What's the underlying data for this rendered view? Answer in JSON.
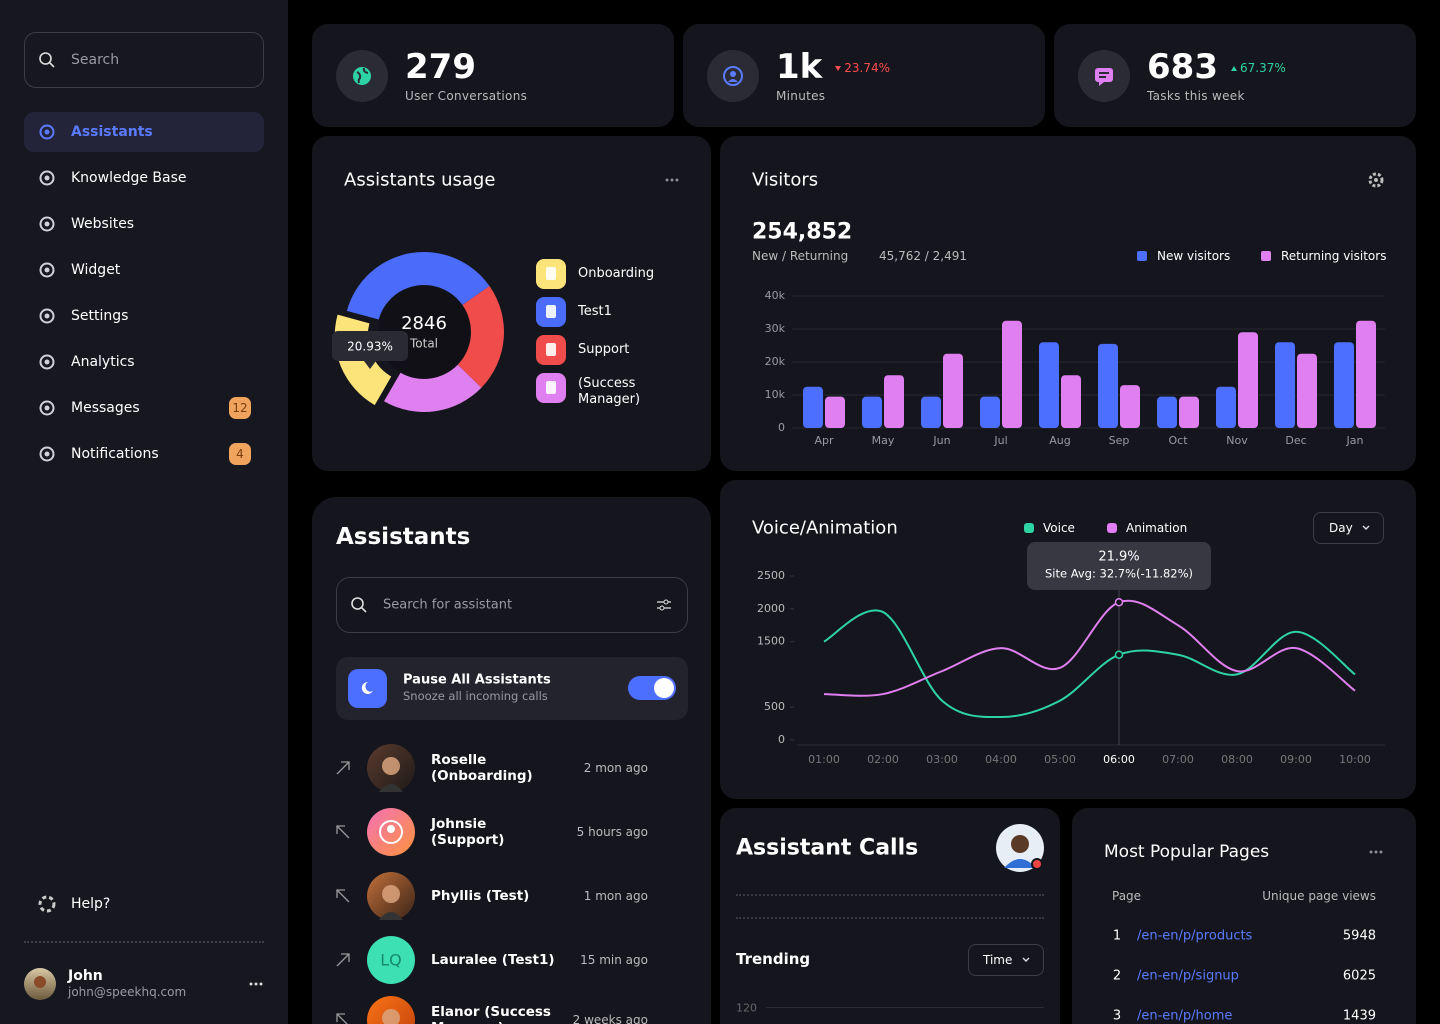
{
  "sidebar": {
    "search": "Search",
    "nav": [
      {
        "label": "Assistants"
      },
      {
        "label": "Knowledge Base"
      },
      {
        "label": "Websites"
      },
      {
        "label": "Widget"
      },
      {
        "label": "Settings"
      },
      {
        "label": "Analytics"
      },
      {
        "label": "Messages",
        "badge": 12
      },
      {
        "label": "Notifications",
        "badge": 4
      }
    ],
    "help": "Help?",
    "user": {
      "name": "John",
      "email": "john@speekhq.com"
    }
  },
  "stats": [
    {
      "value": 279,
      "label": "User Conversations"
    },
    {
      "value": "1k",
      "label": "Minutes",
      "change": "23.74%"
    },
    {
      "value": 683,
      "label": "Tasks this week",
      "change": "67.37%"
    }
  ],
  "assistants": {
    "title": "Assistants",
    "search": "Search for assistant",
    "pause": {
      "title": "Pause All Assistants",
      "subtitle": "Snooze all incoming calls"
    },
    "items": [
      {
        "name": "Roselle (Onboarding)",
        "time": "2 mon ago"
      },
      {
        "name": "Johnsie (Support)",
        "time": "5 hours ago"
      },
      {
        "name": "Phyllis (Test)",
        "time": "1 mon ago"
      },
      {
        "name": "Lauralee (Test1)",
        "time": "15 min ago",
        "initials": "LQ"
      },
      {
        "name": "Elanor (Success Manager)",
        "time": "2 weeks ago"
      }
    ]
  },
  "assistant_calls": {
    "title": "Assistant Calls",
    "trending": "Trending",
    "filter": "Time",
    "tick": 120
  },
  "popular_pages": {
    "title": "Most Popular Pages",
    "columns": [
      "Page",
      "Unique page views"
    ],
    "rows": [
      [
        1,
        "/en-en/p/products",
        5948
      ],
      [
        2,
        "/en-en/p/signup",
        6025
      ],
      [
        3,
        "/en-en/p/home",
        1439
      ]
    ]
  },
  "chart_data": [
    {
      "type": "pie",
      "title": "Assistants usage",
      "total": 2846,
      "total_label": "Total",
      "categories": [
        "Onboarding",
        "Test1",
        "Support",
        "(Success Manager)"
      ],
      "colors": [
        "#fde47a",
        "#4b6bfb",
        "#f04c4c",
        "#e07ff0"
      ],
      "values": [
        20.93,
        36,
        22,
        21.07
      ],
      "value_labels": [
        "20.93%",
        null,
        null,
        null
      ]
    },
    {
      "type": "bar",
      "title": "Visitors",
      "total": "254,852",
      "subtitle": "New / Returning",
      "detail": "45,762 / 2,491",
      "categories": [
        "Apr",
        "May",
        "Jun",
        "Jul",
        "Aug",
        "Sep",
        "Oct",
        "Nov",
        "Dec",
        "Jan"
      ],
      "series": [
        {
          "name": "New visitors",
          "color": "#4c6fff",
          "values": [
            12500,
            9500,
            9500,
            9500,
            26000,
            25500,
            9500,
            12500,
            26000,
            26000
          ]
        },
        {
          "name": "Returning visitors",
          "color": "#e07ff0",
          "values": [
            9500,
            16000,
            22500,
            32500,
            16000,
            13000,
            9500,
            29000,
            22500,
            32500
          ]
        }
      ],
      "ylim": [
        0,
        40000
      ],
      "yticks": [
        0,
        {
          "value": 10000,
          "label": "10k"
        },
        {
          "value": 20000,
          "label": "20k"
        },
        {
          "value": 30000,
          "label": "30k"
        },
        {
          "value": 40000,
          "label": "40k"
        }
      ],
      "grid": true
    },
    {
      "type": "line",
      "title": "Voice/Animation",
      "filter": "Day",
      "categories": [
        "01:00",
        "02:00",
        "03:00",
        "04:00",
        "05:00",
        "06:00",
        "07:00",
        "08:00",
        "09:00",
        "10:00"
      ],
      "series": [
        {
          "name": "Voice",
          "color": "#2ed3a5",
          "values": [
            1500,
            1950,
            600,
            350,
            600,
            1300,
            1300,
            1000,
            1650,
            1000
          ]
        },
        {
          "name": "Animation",
          "color": "#e07ff0",
          "values": [
            700,
            700,
            1050,
            1400,
            1100,
            2100,
            1750,
            1050,
            1400,
            750
          ]
        }
      ],
      "ylim": [
        0,
        2500
      ],
      "yticks": [
        0,
        500,
        1500,
        2000,
        2500
      ],
      "grid": false,
      "annotation": {
        "x": "06:00",
        "title": "21.9%",
        "text": "Site Avg: 32.7%(-11.82%)"
      }
    }
  ]
}
